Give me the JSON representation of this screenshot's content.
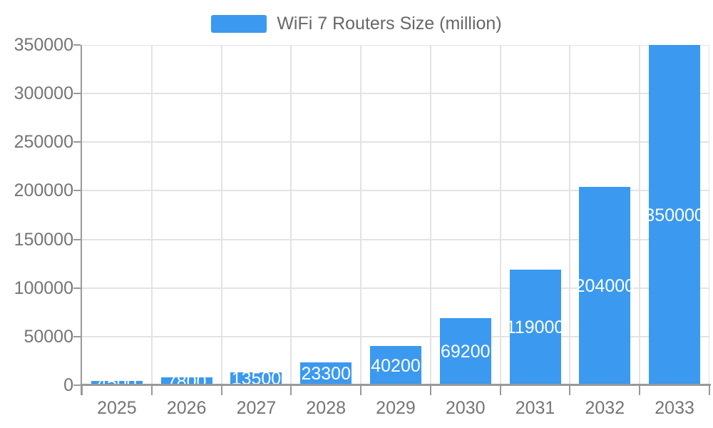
{
  "chart_data": {
    "type": "bar",
    "title": "WiFi 7 Routers Size (million)",
    "legend": {
      "label": "WiFi 7 Routers Size (million)",
      "position": "top-center"
    },
    "categories": [
      "2025",
      "2026",
      "2027",
      "2028",
      "2029",
      "2030",
      "2031",
      "2032",
      "2033"
    ],
    "values": [
      4500,
      7800,
      13500,
      23300,
      40200,
      69200,
      119000,
      204000,
      350000
    ],
    "value_labels": [
      "4500",
      "7800",
      "13500",
      "23300",
      "40200",
      "69200",
      "119000",
      "204000",
      "350000"
    ],
    "xlabel": "",
    "ylabel": "",
    "ylim": [
      0,
      350000
    ],
    "yticks": [
      0,
      50000,
      100000,
      150000,
      200000,
      250000,
      300000,
      350000
    ],
    "grid": true,
    "value_label_position": "inside-middle",
    "colors": {
      "bar": "#3B99F0",
      "value_label": "#FFFFFF",
      "grid_line": "#E3E3E3",
      "axis_line": "#999999",
      "tick_label": "#757575",
      "legend_text": "#676767",
      "background": "#FFFFFF"
    }
  }
}
